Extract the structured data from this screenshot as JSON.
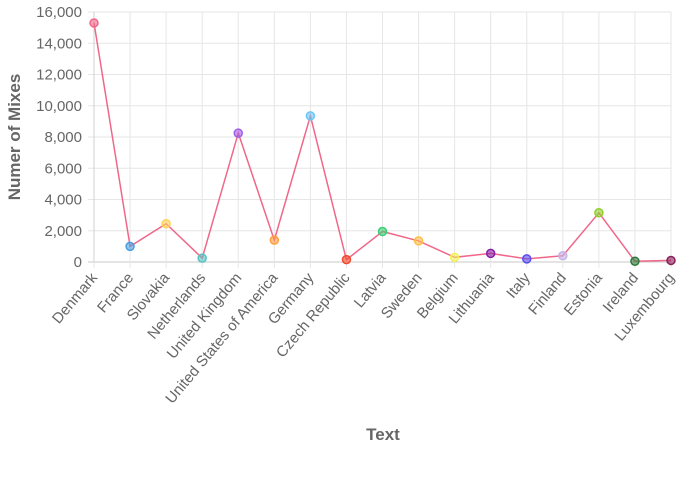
{
  "chart_data": {
    "type": "line",
    "xlabel": "Text",
    "ylabel": "Numer of Mixes",
    "ylim": [
      0,
      16000
    ],
    "yticks": [
      0,
      2000,
      4000,
      6000,
      8000,
      10000,
      12000,
      14000,
      16000
    ],
    "y_tick_labels": [
      "0",
      "2,000",
      "4,000",
      "6,000",
      "8,000",
      "10,000",
      "12,000",
      "14,000",
      "16,000"
    ],
    "grid": true,
    "line_color": "#f0678a",
    "categories": [
      "Denmark",
      "France",
      "Slovakia",
      "Netherlands",
      "United Kingdom",
      "United States of America",
      "Germany",
      "Czech Republic",
      "Latvia",
      "Sweden",
      "Belgium",
      "Lithuania",
      "Italy",
      "Finland",
      "Estonia",
      "Ireland",
      "Luxembourg"
    ],
    "values": [
      15300,
      1000,
      2450,
      250,
      8250,
      1400,
      9350,
      150,
      1950,
      1350,
      300,
      550,
      200,
      400,
      3150,
      50,
      100
    ],
    "point_colors": [
      "#f0678a",
      "#4a9fe0",
      "#ffd05a",
      "#57c2c2",
      "#a15ee8",
      "#ff9f40",
      "#69c8f5",
      "#f24a2e",
      "#3ccf74",
      "#ffc04a",
      "#f2f25a",
      "#8a1fa6",
      "#5a4ef2",
      "#c6b3e8",
      "#8fd12a",
      "#2d7a3a",
      "#8a1f5a"
    ]
  }
}
